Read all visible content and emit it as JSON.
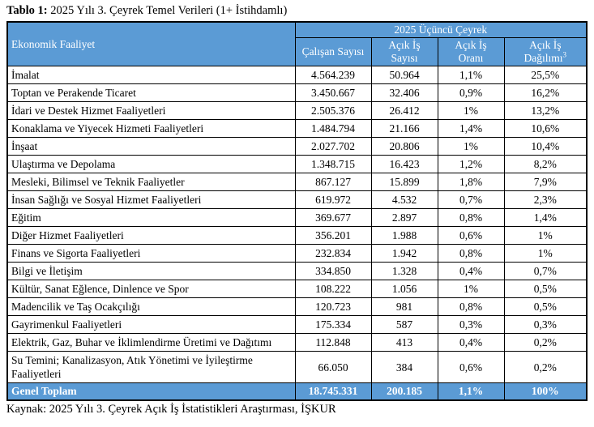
{
  "title": {
    "prefix": "Tablo 1:",
    "text": " 2025 Yılı 3. Çeyrek Temel Verileri (1+ İstihdamlı)"
  },
  "table": {
    "group_header": "2025 Üçüncü Çeyrek",
    "col_headers": [
      {
        "lines": [
          "Ekonomik Faaliyet"
        ]
      },
      {
        "lines": [
          "Çalışan Sayısı"
        ]
      },
      {
        "lines": [
          "Açık İş",
          "Sayısı"
        ]
      },
      {
        "lines": [
          "Açık İş",
          "Oranı"
        ]
      },
      {
        "lines": [
          "Açık İş",
          "Dağılımı"
        ],
        "sup": "3"
      }
    ],
    "rows": [
      {
        "name": "İmalat",
        "values": [
          "4.564.239",
          "50.964",
          "1,1%",
          "25,5%"
        ]
      },
      {
        "name": "Toptan ve Perakende Ticaret",
        "values": [
          "3.450.667",
          "32.406",
          "0,9%",
          "16,2%"
        ]
      },
      {
        "name": "İdari ve Destek Hizmet Faaliyetleri",
        "values": [
          "2.505.376",
          "26.412",
          "1%",
          "13,2%"
        ]
      },
      {
        "name": "Konaklama ve Yiyecek Hizmeti Faaliyetleri",
        "values": [
          "1.484.794",
          "21.166",
          "1,4%",
          "10,6%"
        ]
      },
      {
        "name": "İnşaat",
        "values": [
          "2.027.702",
          "20.806",
          "1%",
          "10,4%"
        ]
      },
      {
        "name": "Ulaştırma ve Depolama",
        "values": [
          "1.348.715",
          "16.423",
          "1,2%",
          "8,2%"
        ]
      },
      {
        "name": "Mesleki, Bilimsel ve Teknik Faaliyetler",
        "values": [
          "867.127",
          "15.899",
          "1,8%",
          "7,9%"
        ]
      },
      {
        "name": "İnsan Sağlığı ve Sosyal Hizmet Faaliyetleri",
        "values": [
          "619.972",
          "4.532",
          "0,7%",
          "2,3%"
        ]
      },
      {
        "name": "Eğitim",
        "values": [
          "369.677",
          "2.897",
          "0,8%",
          "1,4%"
        ]
      },
      {
        "name": "Diğer Hizmet Faaliyetleri",
        "values": [
          "356.201",
          "1.988",
          "0,6%",
          "1%"
        ]
      },
      {
        "name": "Finans ve Sigorta Faaliyetleri",
        "values": [
          "232.834",
          "1.942",
          "0,8%",
          "1%"
        ]
      },
      {
        "name": "Bilgi ve İletişim",
        "values": [
          "334.850",
          "1.328",
          "0,4%",
          "0,7%"
        ]
      },
      {
        "name": "Kültür, Sanat Eğlence, Dinlence ve Spor",
        "values": [
          "108.222",
          "1.056",
          "1%",
          "0,5%"
        ]
      },
      {
        "name": "Madencilik ve Taş Ocakçılığı",
        "values": [
          "120.723",
          "981",
          "0,8%",
          "0,5%"
        ]
      },
      {
        "name": "Gayrimenkul Faaliyetleri",
        "values": [
          "175.334",
          "587",
          "0,3%",
          "0,3%"
        ]
      },
      {
        "name": "Elektrik, Gaz, Buhar ve İklimlendirme Üretimi ve Dağıtımı",
        "values": [
          "112.848",
          "413",
          "0,4%",
          "0,2%"
        ]
      },
      {
        "name": "Su Temini; Kanalizasyon, Atık Yönetimi ve İyileştirme Faaliyetleri",
        "values": [
          "66.050",
          "384",
          "0,6%",
          "0,2%"
        ]
      }
    ],
    "total": {
      "label": "Genel Toplam",
      "values": [
        "18.745.331",
        "200.185",
        "1,1%",
        "100%"
      ]
    }
  },
  "caption": "Kaynak: 2025 Yılı 3. Çeyrek Açık İş İstatistikleri Araştırması, İŞKUR",
  "colors": {
    "header_bg": "#5B9BD5",
    "header_text": "#FFFFFF",
    "border": "#000000",
    "text": "#000000",
    "page_bg": "#FFFFFF"
  }
}
